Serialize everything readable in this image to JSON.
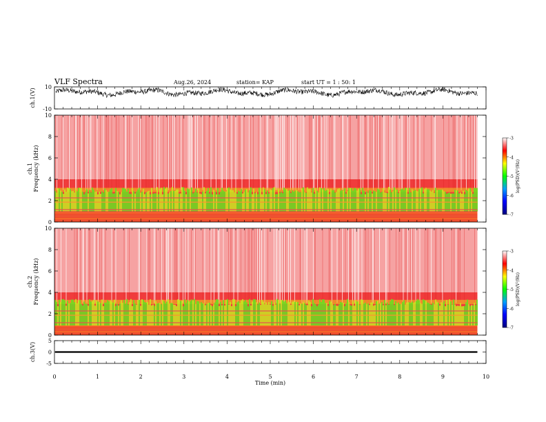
{
  "header": {
    "title": "VLF Spectra",
    "date": "Aug.26, 2024",
    "station": "station= KAP",
    "start_ut": "start  UT =  1 : 50: 1"
  },
  "colorbar": {
    "ticks": [
      "-3",
      "-4",
      "-5",
      "-6",
      "-7"
    ],
    "label": "log(PSD)(V²/Hz)",
    "stops": [
      "#ffffff",
      "#ff0000",
      "#ffff00",
      "#00ff00",
      "#00a0ff",
      "#0000ff",
      "#000080"
    ]
  },
  "chart_data": [
    {
      "type": "line",
      "panel": "ch1-waveform",
      "ylabel": "ch.1(V)",
      "yticks": [
        "10",
        "-10"
      ],
      "ylim": [
        -10,
        10
      ],
      "xlim": [
        0,
        10
      ],
      "description_values": {
        "mean": 4.5,
        "range": [
          1,
          9
        ],
        "data_end_min": 9.8
      }
    },
    {
      "type": "heatmap",
      "panel": "ch1-spectrogram",
      "ylabel": "ch.1\nFrequency (kHz)",
      "yticks": [
        "0",
        "2",
        "4",
        "6",
        "8",
        "10"
      ],
      "ylim": [
        0,
        10
      ],
      "xlim": [
        0,
        10
      ],
      "color_scale": {
        "min": -7,
        "max": -3
      },
      "bands_khz": {
        "green_strong": [
          1.0,
          2.8
        ],
        "red": [
          0,
          10
        ]
      },
      "data_end_min": 9.8
    },
    {
      "type": "heatmap",
      "panel": "ch2-spectrogram",
      "ylabel": "ch.2\nFrequency (kHz)",
      "yticks": [
        "0",
        "2",
        "4",
        "6",
        "8",
        "10"
      ],
      "ylim": [
        0,
        10
      ],
      "xlim": [
        0,
        10
      ],
      "color_scale": {
        "min": -7,
        "max": -3
      },
      "bands_khz": {
        "green_strong": [
          0.9,
          2.9
        ],
        "red": [
          0,
          10
        ]
      },
      "data_end_min": 9.8
    },
    {
      "type": "line",
      "panel": "ch3-waveform",
      "ylabel": "ch.3(V)",
      "yticks": [
        "5",
        "0",
        "-5"
      ],
      "ylim": [
        -5,
        5
      ],
      "xlim": [
        0,
        10
      ],
      "description_values": {
        "mean": 0,
        "range": [
          -0.5,
          0.5
        ],
        "data_end_min": 9.8
      }
    }
  ],
  "xaxis": {
    "label": "Time (min)",
    "ticks": [
      "0",
      "1",
      "2",
      "3",
      "4",
      "5",
      "6",
      "7",
      "8",
      "9",
      "10"
    ]
  }
}
